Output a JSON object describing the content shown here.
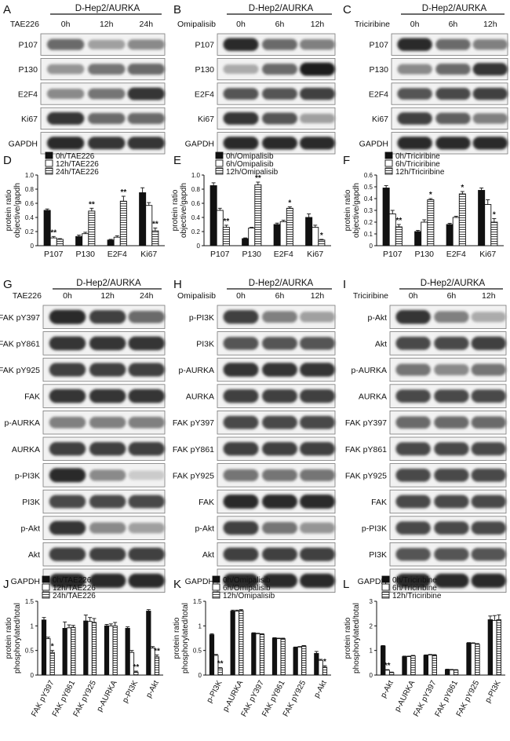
{
  "panels_wb": [
    {
      "letter": "A",
      "header": "D-Hep2/AURKA",
      "treatment": "TAE226",
      "times": [
        "0h",
        "12h",
        "24h"
      ],
      "rows": [
        {
          "label": "P107",
          "i": [
            0.6,
            0.35,
            0.45
          ]
        },
        {
          "label": "P130",
          "i": [
            0.4,
            0.55,
            0.6
          ]
        },
        {
          "label": "E2F4",
          "i": [
            0.45,
            0.55,
            0.85
          ]
        },
        {
          "label": "Ki67",
          "i": [
            0.85,
            0.6,
            0.6
          ]
        },
        {
          "label": "GAPDH",
          "i": [
            0.9,
            0.85,
            0.85
          ]
        }
      ]
    },
    {
      "letter": "B",
      "header": "D-Hep2/AURKA",
      "treatment": "Omipalisib",
      "times": [
        "0h",
        "6h",
        "12h"
      ],
      "rows": [
        {
          "label": "P107",
          "i": [
            0.9,
            0.6,
            0.5
          ]
        },
        {
          "label": "P130",
          "i": [
            0.3,
            0.6,
            0.95
          ]
        },
        {
          "label": "E2F4",
          "i": [
            0.7,
            0.7,
            0.8
          ]
        },
        {
          "label": "Ki67",
          "i": [
            0.85,
            0.7,
            0.35
          ]
        },
        {
          "label": "GAPDH",
          "i": [
            0.9,
            0.9,
            0.9
          ]
        }
      ]
    },
    {
      "letter": "C",
      "header": "D-Hep2/AURKA",
      "treatment": "Triciribine",
      "times": [
        "0h",
        "6h",
        "12h"
      ],
      "rows": [
        {
          "label": "P107",
          "i": [
            0.9,
            0.6,
            0.5
          ]
        },
        {
          "label": "P130",
          "i": [
            0.45,
            0.6,
            0.85
          ]
        },
        {
          "label": "E2F4",
          "i": [
            0.7,
            0.75,
            0.8
          ]
        },
        {
          "label": "Ki67",
          "i": [
            0.8,
            0.65,
            0.5
          ]
        },
        {
          "label": "GAPDH",
          "i": [
            0.9,
            0.9,
            0.9
          ]
        }
      ]
    },
    {
      "letter": "G",
      "header": "D-Hep2/AURKA",
      "treatment": "TAE226",
      "times": [
        "0h",
        "12h",
        "24h"
      ],
      "rows": [
        {
          "label": "FAK pY397",
          "i": [
            0.9,
            0.8,
            0.6
          ]
        },
        {
          "label": "FAK pY861",
          "i": [
            0.85,
            0.85,
            0.85
          ]
        },
        {
          "label": "FAK pY925",
          "i": [
            0.8,
            0.8,
            0.8
          ]
        },
        {
          "label": "FAK",
          "i": [
            0.85,
            0.85,
            0.85
          ]
        },
        {
          "label": "p-AURKA",
          "i": [
            0.5,
            0.5,
            0.5
          ]
        },
        {
          "label": "AURKA",
          "i": [
            0.8,
            0.8,
            0.8
          ]
        },
        {
          "label": "p-PI3K",
          "i": [
            0.9,
            0.45,
            0.15
          ]
        },
        {
          "label": "PI3K",
          "i": [
            0.75,
            0.75,
            0.75
          ]
        },
        {
          "label": "p-Akt",
          "i": [
            0.85,
            0.45,
            0.35
          ]
        },
        {
          "label": "Akt",
          "i": [
            0.8,
            0.8,
            0.8
          ]
        },
        {
          "label": "GAPDH",
          "i": [
            0.9,
            0.9,
            0.9
          ]
        }
      ]
    },
    {
      "letter": "H",
      "header": "D-Hep2/AURKA",
      "treatment": "Omipalisib",
      "times": [
        "0h",
        "6h",
        "12h"
      ],
      "rows": [
        {
          "label": "p-PI3K",
          "i": [
            0.8,
            0.5,
            0.35
          ]
        },
        {
          "label": "PI3K",
          "i": [
            0.7,
            0.7,
            0.7
          ]
        },
        {
          "label": "p-AURKA",
          "i": [
            0.85,
            0.85,
            0.85
          ]
        },
        {
          "label": "AURKA",
          "i": [
            0.8,
            0.8,
            0.8
          ]
        },
        {
          "label": "FAK pY397",
          "i": [
            0.75,
            0.75,
            0.75
          ]
        },
        {
          "label": "FAK pY861",
          "i": [
            0.8,
            0.8,
            0.8
          ]
        },
        {
          "label": "FAK pY925",
          "i": [
            0.55,
            0.55,
            0.55
          ]
        },
        {
          "label": "FAK",
          "i": [
            0.9,
            0.9,
            0.9
          ]
        },
        {
          "label": "p-Akt",
          "i": [
            0.8,
            0.55,
            0.4
          ]
        },
        {
          "label": "Akt",
          "i": [
            0.8,
            0.8,
            0.8
          ]
        },
        {
          "label": "GAPDH",
          "i": [
            0.9,
            0.9,
            0.9
          ]
        }
      ]
    },
    {
      "letter": "I",
      "header": "D-Hep2/AURKA",
      "treatment": "Triciribine",
      "times": [
        "0h",
        "6h",
        "12h"
      ],
      "rows": [
        {
          "label": "p-Akt",
          "i": [
            0.85,
            0.5,
            0.3
          ]
        },
        {
          "label": "Akt",
          "i": [
            0.75,
            0.75,
            0.8
          ]
        },
        {
          "label": "p-AURKA",
          "i": [
            0.55,
            0.45,
            0.55
          ]
        },
        {
          "label": "AURKA",
          "i": [
            0.75,
            0.75,
            0.75
          ]
        },
        {
          "label": "FAK pY397",
          "i": [
            0.6,
            0.6,
            0.6
          ]
        },
        {
          "label": "FAK pY861",
          "i": [
            0.75,
            0.75,
            0.75
          ]
        },
        {
          "label": "FAK pY925",
          "i": [
            0.75,
            0.75,
            0.75
          ]
        },
        {
          "label": "FAK",
          "i": [
            0.75,
            0.75,
            0.75
          ]
        },
        {
          "label": "p-PI3K",
          "i": [
            0.75,
            0.75,
            0.75
          ]
        },
        {
          "label": "PI3K",
          "i": [
            0.7,
            0.7,
            0.7
          ]
        },
        {
          "label": "GAPDH",
          "i": [
            0.9,
            0.9,
            0.9
          ]
        }
      ]
    }
  ],
  "chart_data": [
    {
      "letter": "D",
      "type": "bar",
      "ylabel": "protein ratio objective/gapdh",
      "ylim": [
        0,
        1.0
      ],
      "yticks": [
        0,
        0.2,
        0.4,
        0.6,
        0.8,
        1.0
      ],
      "rotate": false,
      "categories": [
        "P107",
        "P130",
        "E2F4",
        "Ki67"
      ],
      "series": [
        {
          "name": "0h/TAE226",
          "values": [
            0.5,
            0.13,
            0.08,
            0.75
          ],
          "err": [
            0.02,
            0.02,
            0.01,
            0.07
          ]
        },
        {
          "name": "12h/TAE226",
          "values": [
            0.11,
            0.17,
            0.12,
            0.57
          ],
          "err": [
            0.02,
            0.02,
            0.02,
            0.04
          ]
        },
        {
          "name": "24h/TAE226",
          "values": [
            0.09,
            0.49,
            0.63,
            0.21
          ],
          "err": [
            0.01,
            0.04,
            0.07,
            0.04
          ]
        }
      ],
      "stars": [
        [
          null,
          "**",
          null
        ],
        [
          null,
          null,
          "**"
        ],
        [
          null,
          null,
          "**"
        ],
        [
          null,
          null,
          "**"
        ]
      ]
    },
    {
      "letter": "E",
      "type": "bar",
      "ylabel": "protein ratio objective/gapdh",
      "ylim": [
        0,
        1.0
      ],
      "yticks": [
        0,
        0.2,
        0.4,
        0.6,
        0.8,
        1.0
      ],
      "rotate": false,
      "categories": [
        "P107",
        "P130",
        "E2F4",
        "Ki67"
      ],
      "series": [
        {
          "name": "0h/Omipalisib",
          "values": [
            0.85,
            0.1,
            0.3,
            0.4
          ],
          "err": [
            0.04,
            0.01,
            0.02,
            0.05
          ]
        },
        {
          "name": "6h/Omipalisib",
          "values": [
            0.5,
            0.25,
            0.34,
            0.26
          ],
          "err": [
            0.03,
            0.01,
            0.02,
            0.03
          ]
        },
        {
          "name": "12h/Omipalisib",
          "values": [
            0.26,
            0.86,
            0.53,
            0.08
          ],
          "err": [
            0.03,
            0.04,
            0.02,
            0.01
          ]
        }
      ],
      "stars": [
        [
          null,
          null,
          "**"
        ],
        [
          null,
          null,
          "**"
        ],
        [
          null,
          null,
          "*"
        ],
        [
          null,
          null,
          "*"
        ]
      ]
    },
    {
      "letter": "F",
      "type": "bar",
      "ylabel": "protein ratio objective/gapdh",
      "ylim": [
        0,
        0.6
      ],
      "yticks": [
        0,
        0.1,
        0.2,
        0.3,
        0.4,
        0.5,
        0.6
      ],
      "rotate": false,
      "categories": [
        "P107",
        "P130",
        "E2F4",
        "Ki67"
      ],
      "series": [
        {
          "name": "0h/Triciribine",
          "values": [
            0.49,
            0.12,
            0.18,
            0.47
          ],
          "err": [
            0.02,
            0.01,
            0.01,
            0.02
          ]
        },
        {
          "name": "6h/Triciribine",
          "values": [
            0.27,
            0.2,
            0.24,
            0.35
          ],
          "err": [
            0.03,
            0.02,
            0.01,
            0.04
          ]
        },
        {
          "name": "12h/Triciribine",
          "values": [
            0.16,
            0.39,
            0.44,
            0.2
          ],
          "err": [
            0.02,
            0.01,
            0.02,
            0.03
          ]
        }
      ],
      "stars": [
        [
          null,
          null,
          "**"
        ],
        [
          null,
          null,
          "*"
        ],
        [
          null,
          null,
          "*"
        ],
        [
          null,
          null,
          "*"
        ]
      ]
    },
    {
      "letter": "J",
      "type": "bar",
      "ylabel": "protein ratio phosphorylated/total",
      "ylim": [
        0,
        1.5
      ],
      "yticks": [
        0,
        0.5,
        1.0,
        1.5
      ],
      "rotate": true,
      "categories": [
        "FAK pY397",
        "FAK pY861",
        "FAK pY925",
        "p-AURKA",
        "p-PI3K",
        "p-Akt"
      ],
      "series": [
        {
          "name": "0h/TAE226",
          "values": [
            1.12,
            0.95,
            1.1,
            1.0,
            0.95,
            1.3
          ],
          "err": [
            0.05,
            0.13,
            0.12,
            0.03,
            0.03,
            0.03
          ]
        },
        {
          "name": "12h/TAE226",
          "values": [
            0.74,
            0.96,
            1.09,
            1.0,
            0.46,
            0.55
          ],
          "err": [
            0.03,
            0.06,
            0.08,
            0.04,
            0.04,
            0.03
          ]
        },
        {
          "name": "24h/TAE226",
          "values": [
            0.46,
            0.97,
            1.07,
            1.0,
            0.06,
            0.37
          ],
          "err": [
            0.04,
            0.04,
            0.08,
            0.07,
            0.02,
            0.04
          ]
        }
      ],
      "stars": [
        [
          null,
          null,
          "*"
        ],
        [
          null,
          null,
          null
        ],
        [
          null,
          null,
          null
        ],
        [
          null,
          null,
          null
        ],
        [
          null,
          null,
          "**"
        ],
        [
          null,
          null,
          "**"
        ]
      ]
    },
    {
      "letter": "K",
      "type": "bar",
      "ylabel": "protein ratio phosphorylated/total",
      "ylim": [
        0,
        1.5
      ],
      "yticks": [
        0,
        0.5,
        1.0,
        1.5
      ],
      "rotate": true,
      "categories": [
        "p-PI3K",
        "p-AURKA",
        "FAK pY397",
        "FAK pY861",
        "FAK pY925",
        "p-Akt"
      ],
      "series": [
        {
          "name": "0h/Omipalisib",
          "values": [
            0.82,
            1.3,
            0.85,
            0.75,
            0.56,
            0.44
          ],
          "err": [
            0.02,
            0.02,
            0.01,
            0.01,
            0.01,
            0.04
          ]
        },
        {
          "name": "6h/Omipalisib",
          "values": [
            0.4,
            1.3,
            0.84,
            0.74,
            0.57,
            0.3
          ],
          "err": [
            0.02,
            0.02,
            0.01,
            0.01,
            0.01,
            0.02
          ]
        },
        {
          "name": "12h/Omipalisib",
          "values": [
            0.14,
            1.31,
            0.83,
            0.74,
            0.59,
            0.16
          ],
          "err": [
            0.01,
            0.02,
            0.01,
            0.01,
            0.01,
            0.03
          ]
        }
      ],
      "stars": [
        [
          null,
          null,
          "**"
        ],
        [
          null,
          null,
          null
        ],
        [
          null,
          null,
          null
        ],
        [
          null,
          null,
          null
        ],
        [
          null,
          null,
          null
        ],
        [
          null,
          null,
          "*"
        ]
      ]
    },
    {
      "letter": "L",
      "type": "bar",
      "ylabel": "protein ratio phosphorylated/total",
      "ylim": [
        0,
        3
      ],
      "yticks": [
        0,
        1,
        2,
        3
      ],
      "rotate": true,
      "categories": [
        "p-Akt",
        "p-AURKA",
        "FAK pY397",
        "FAK pY861",
        "FAK pY925",
        "p-PI3K"
      ],
      "series": [
        {
          "name": "0h/Triciribine",
          "values": [
            1.18,
            0.75,
            0.8,
            0.22,
            1.3,
            2.25
          ],
          "err": [
            0.02,
            0.02,
            0.02,
            0.02,
            0.02,
            0.15
          ]
        },
        {
          "name": "6h/Triciribine",
          "values": [
            0.2,
            0.75,
            0.82,
            0.21,
            1.29,
            2.22
          ],
          "err": [
            0.02,
            0.02,
            0.02,
            0.02,
            0.02,
            0.2
          ]
        },
        {
          "name": "12h/Triciribine",
          "values": [
            0.1,
            0.78,
            0.8,
            0.2,
            1.25,
            2.25
          ],
          "err": [
            0.02,
            0.02,
            0.03,
            0.02,
            0.03,
            0.2
          ]
        }
      ],
      "stars": [
        [
          null,
          "**",
          null
        ],
        [
          null,
          null,
          null
        ],
        [
          null,
          null,
          null
        ],
        [
          null,
          null,
          null
        ],
        [
          null,
          null,
          null
        ],
        [
          null,
          null,
          null
        ]
      ]
    }
  ]
}
